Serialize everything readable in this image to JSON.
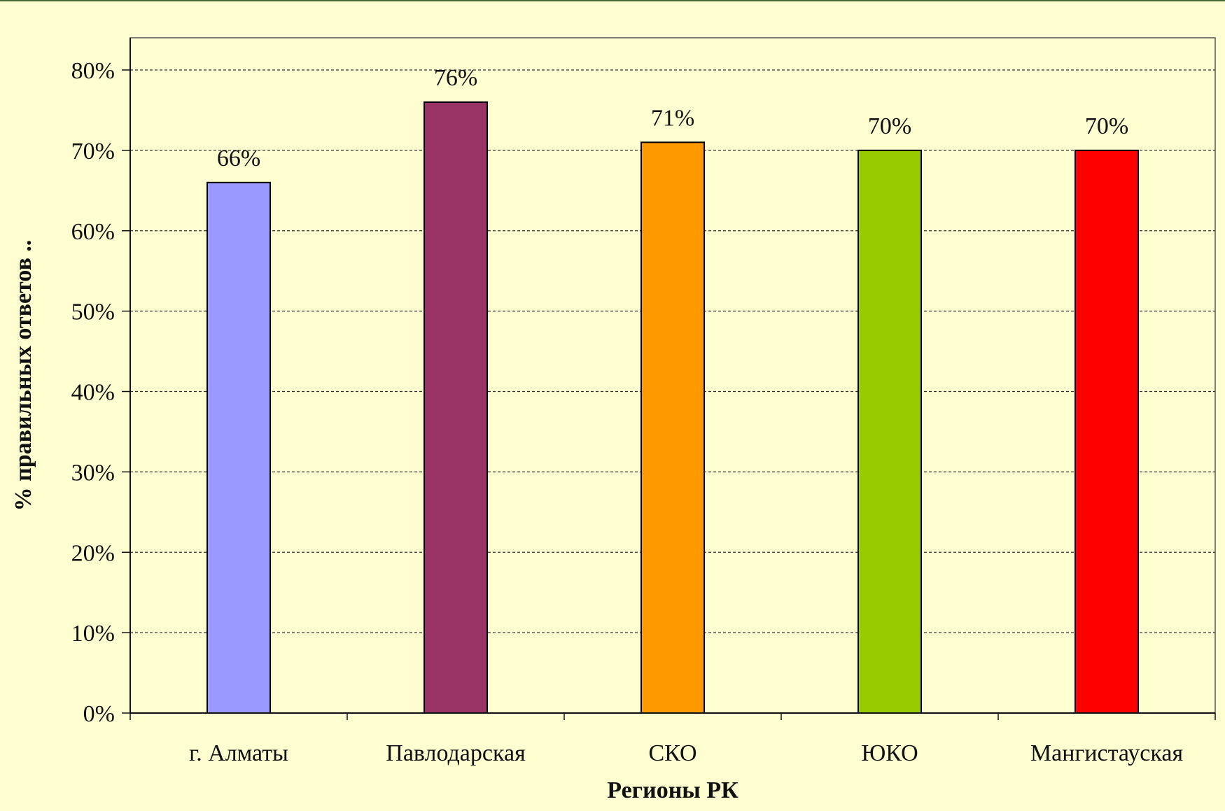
{
  "chart_data": {
    "type": "bar",
    "categories": [
      "г. Алматы",
      "Павлодарская",
      "СКО",
      "ЮКО",
      "Мангистауская"
    ],
    "values": [
      66,
      76,
      71,
      70,
      70
    ],
    "data_labels": [
      "66%",
      "76%",
      "71%",
      "70%",
      "70%"
    ],
    "bar_colors": [
      "#9999ff",
      "#993366",
      "#ff9900",
      "#99cc00",
      "#ff0000"
    ],
    "xlabel": "Регионы РК",
    "ylabel": "% правильных ответов ..",
    "ylim": [
      0,
      80
    ],
    "yticks": [
      0,
      10,
      20,
      30,
      40,
      50,
      60,
      70,
      80
    ],
    "ytick_labels": [
      "0%",
      "10%",
      "20%",
      "30%",
      "40%",
      "50%",
      "60%",
      "70%",
      "80%"
    ],
    "grid": true,
    "legend": "none",
    "background_color": "#fffed0"
  }
}
